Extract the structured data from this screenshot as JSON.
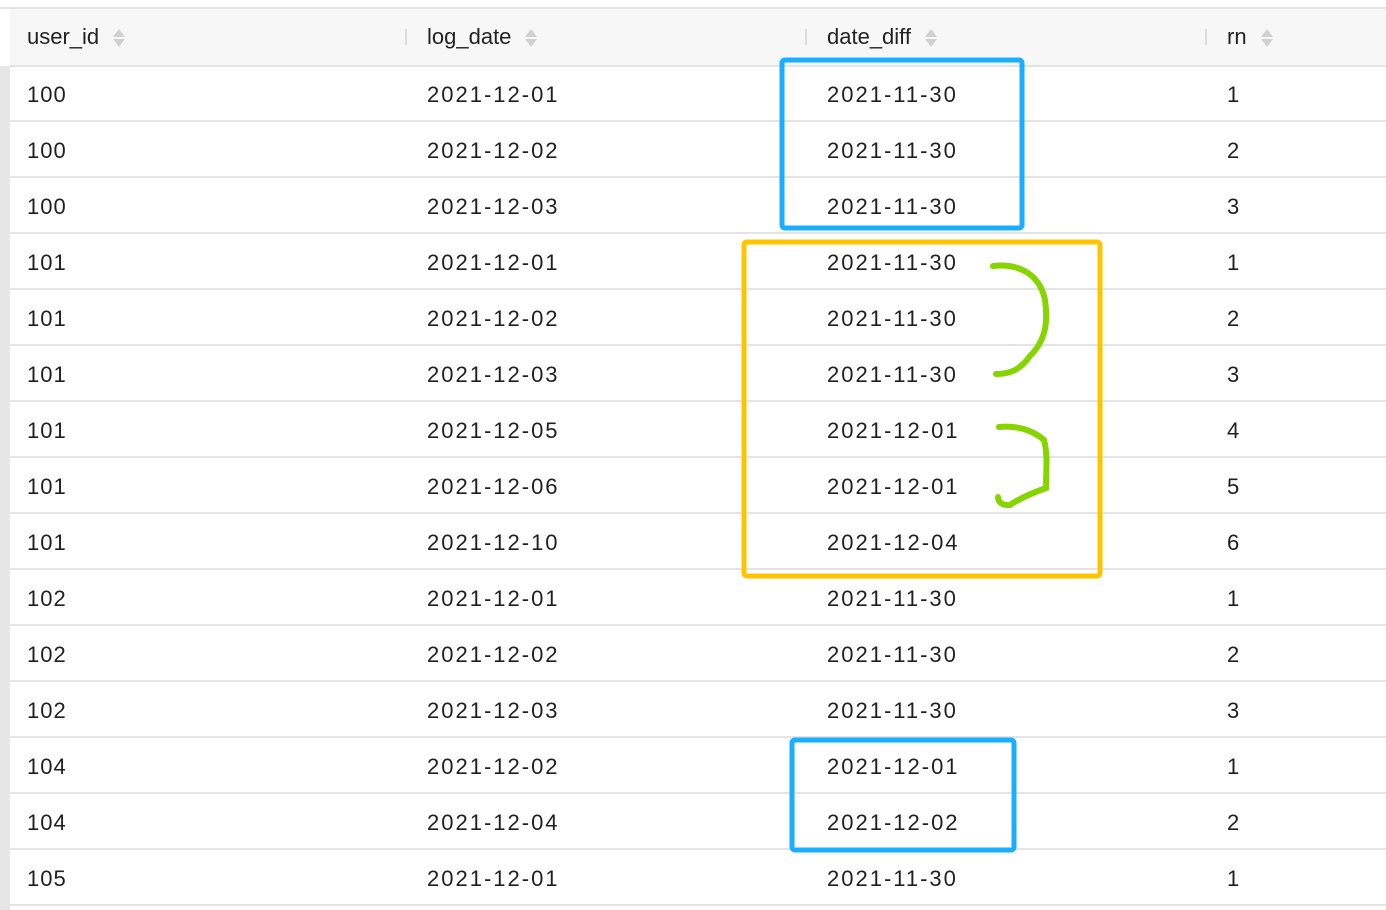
{
  "columns": [
    "user_id",
    "log_date",
    "date_diff",
    "rn"
  ],
  "rows": [
    [
      "100",
      "2021-12-01",
      "2021-11-30",
      "1"
    ],
    [
      "100",
      "2021-12-02",
      "2021-11-30",
      "2"
    ],
    [
      "100",
      "2021-12-03",
      "2021-11-30",
      "3"
    ],
    [
      "101",
      "2021-12-01",
      "2021-11-30",
      "1"
    ],
    [
      "101",
      "2021-12-02",
      "2021-11-30",
      "2"
    ],
    [
      "101",
      "2021-12-03",
      "2021-11-30",
      "3"
    ],
    [
      "101",
      "2021-12-05",
      "2021-12-01",
      "4"
    ],
    [
      "101",
      "2021-12-06",
      "2021-12-01",
      "5"
    ],
    [
      "101",
      "2021-12-10",
      "2021-12-04",
      "6"
    ],
    [
      "102",
      "2021-12-01",
      "2021-11-30",
      "1"
    ],
    [
      "102",
      "2021-12-02",
      "2021-11-30",
      "2"
    ],
    [
      "102",
      "2021-12-03",
      "2021-11-30",
      "3"
    ],
    [
      "104",
      "2021-12-02",
      "2021-12-01",
      "1"
    ],
    [
      "104",
      "2021-12-04",
      "2021-12-02",
      "2"
    ],
    [
      "105",
      "2021-12-01",
      "2021-11-30",
      "1"
    ]
  ],
  "annotation_colors": {
    "blue": "#1aaeff",
    "orange": "#ffc400",
    "green": "#86d400"
  }
}
